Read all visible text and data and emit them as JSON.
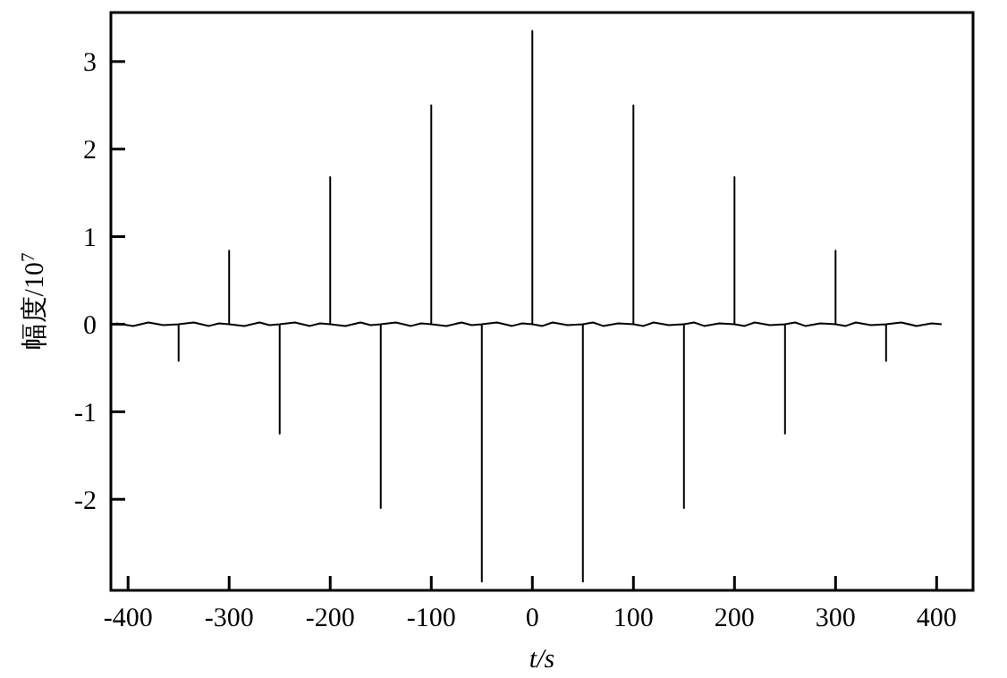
{
  "chart_data": {
    "type": "line",
    "xlabel": "t/s",
    "ylabel": "幅度/10$^{7}$",
    "xlim": [
      -417,
      436
    ],
    "ylim": [
      -3.04,
      3.56
    ],
    "xticks": [
      -400,
      -300,
      -200,
      -100,
      0,
      100,
      200,
      300,
      400
    ],
    "yticks": [
      -2,
      -1,
      0,
      1,
      2,
      3
    ],
    "grid": false,
    "marker": "none",
    "line_style": "solid",
    "series": [
      {
        "color": "#000000",
        "x": [
          -412,
          -395,
          -380,
          -365,
          -350,
          -350,
          -350,
          -335,
          -320,
          -310,
          -300,
          -300,
          -300,
          -285,
          -270,
          -260,
          -250,
          -250,
          -250,
          -235,
          -220,
          -210,
          -200,
          -200,
          -200,
          -185,
          -170,
          -160,
          -150,
          -150,
          -150,
          -135,
          -120,
          -110,
          -100,
          -100,
          -100,
          -85,
          -70,
          -60,
          -50,
          -50,
          -50,
          -35,
          -20,
          -10,
          0,
          0,
          0,
          10,
          20,
          35,
          50,
          50,
          50,
          60,
          70,
          85,
          100,
          100,
          100,
          110,
          120,
          135,
          150,
          150,
          150,
          160,
          170,
          185,
          200,
          200,
          200,
          210,
          220,
          235,
          250,
          250,
          250,
          260,
          270,
          285,
          300,
          300,
          300,
          310,
          320,
          335,
          350,
          350,
          350,
          365,
          380,
          395,
          405
        ],
        "values": [
          0.01,
          -0.02,
          0.02,
          -0.01,
          0,
          -0.42,
          0,
          0.02,
          -0.02,
          0.01,
          0,
          0.84,
          0,
          -0.02,
          0.02,
          -0.01,
          0,
          -1.25,
          0,
          0.02,
          -0.02,
          0.01,
          0,
          1.68,
          0,
          -0.02,
          0.02,
          -0.01,
          0,
          -2.1,
          0,
          0.02,
          -0.02,
          0.01,
          0,
          2.5,
          0,
          -0.02,
          0.02,
          -0.01,
          0,
          -2.94,
          0,
          0.02,
          -0.02,
          0.01,
          0,
          3.35,
          0,
          -0.02,
          0.02,
          -0.01,
          0,
          -2.94,
          0,
          0.02,
          -0.02,
          0.01,
          0,
          2.5,
          0,
          -0.02,
          0.02,
          -0.01,
          0,
          -2.1,
          0,
          0.02,
          -0.02,
          0.01,
          0,
          1.68,
          0,
          -0.02,
          0.02,
          -0.01,
          0,
          -1.25,
          0,
          0.02,
          -0.02,
          0.01,
          0,
          0.84,
          0,
          -0.02,
          0.02,
          -0.01,
          0,
          -0.42,
          0,
          0.02,
          -0.02,
          0.01,
          0
        ]
      }
    ]
  }
}
